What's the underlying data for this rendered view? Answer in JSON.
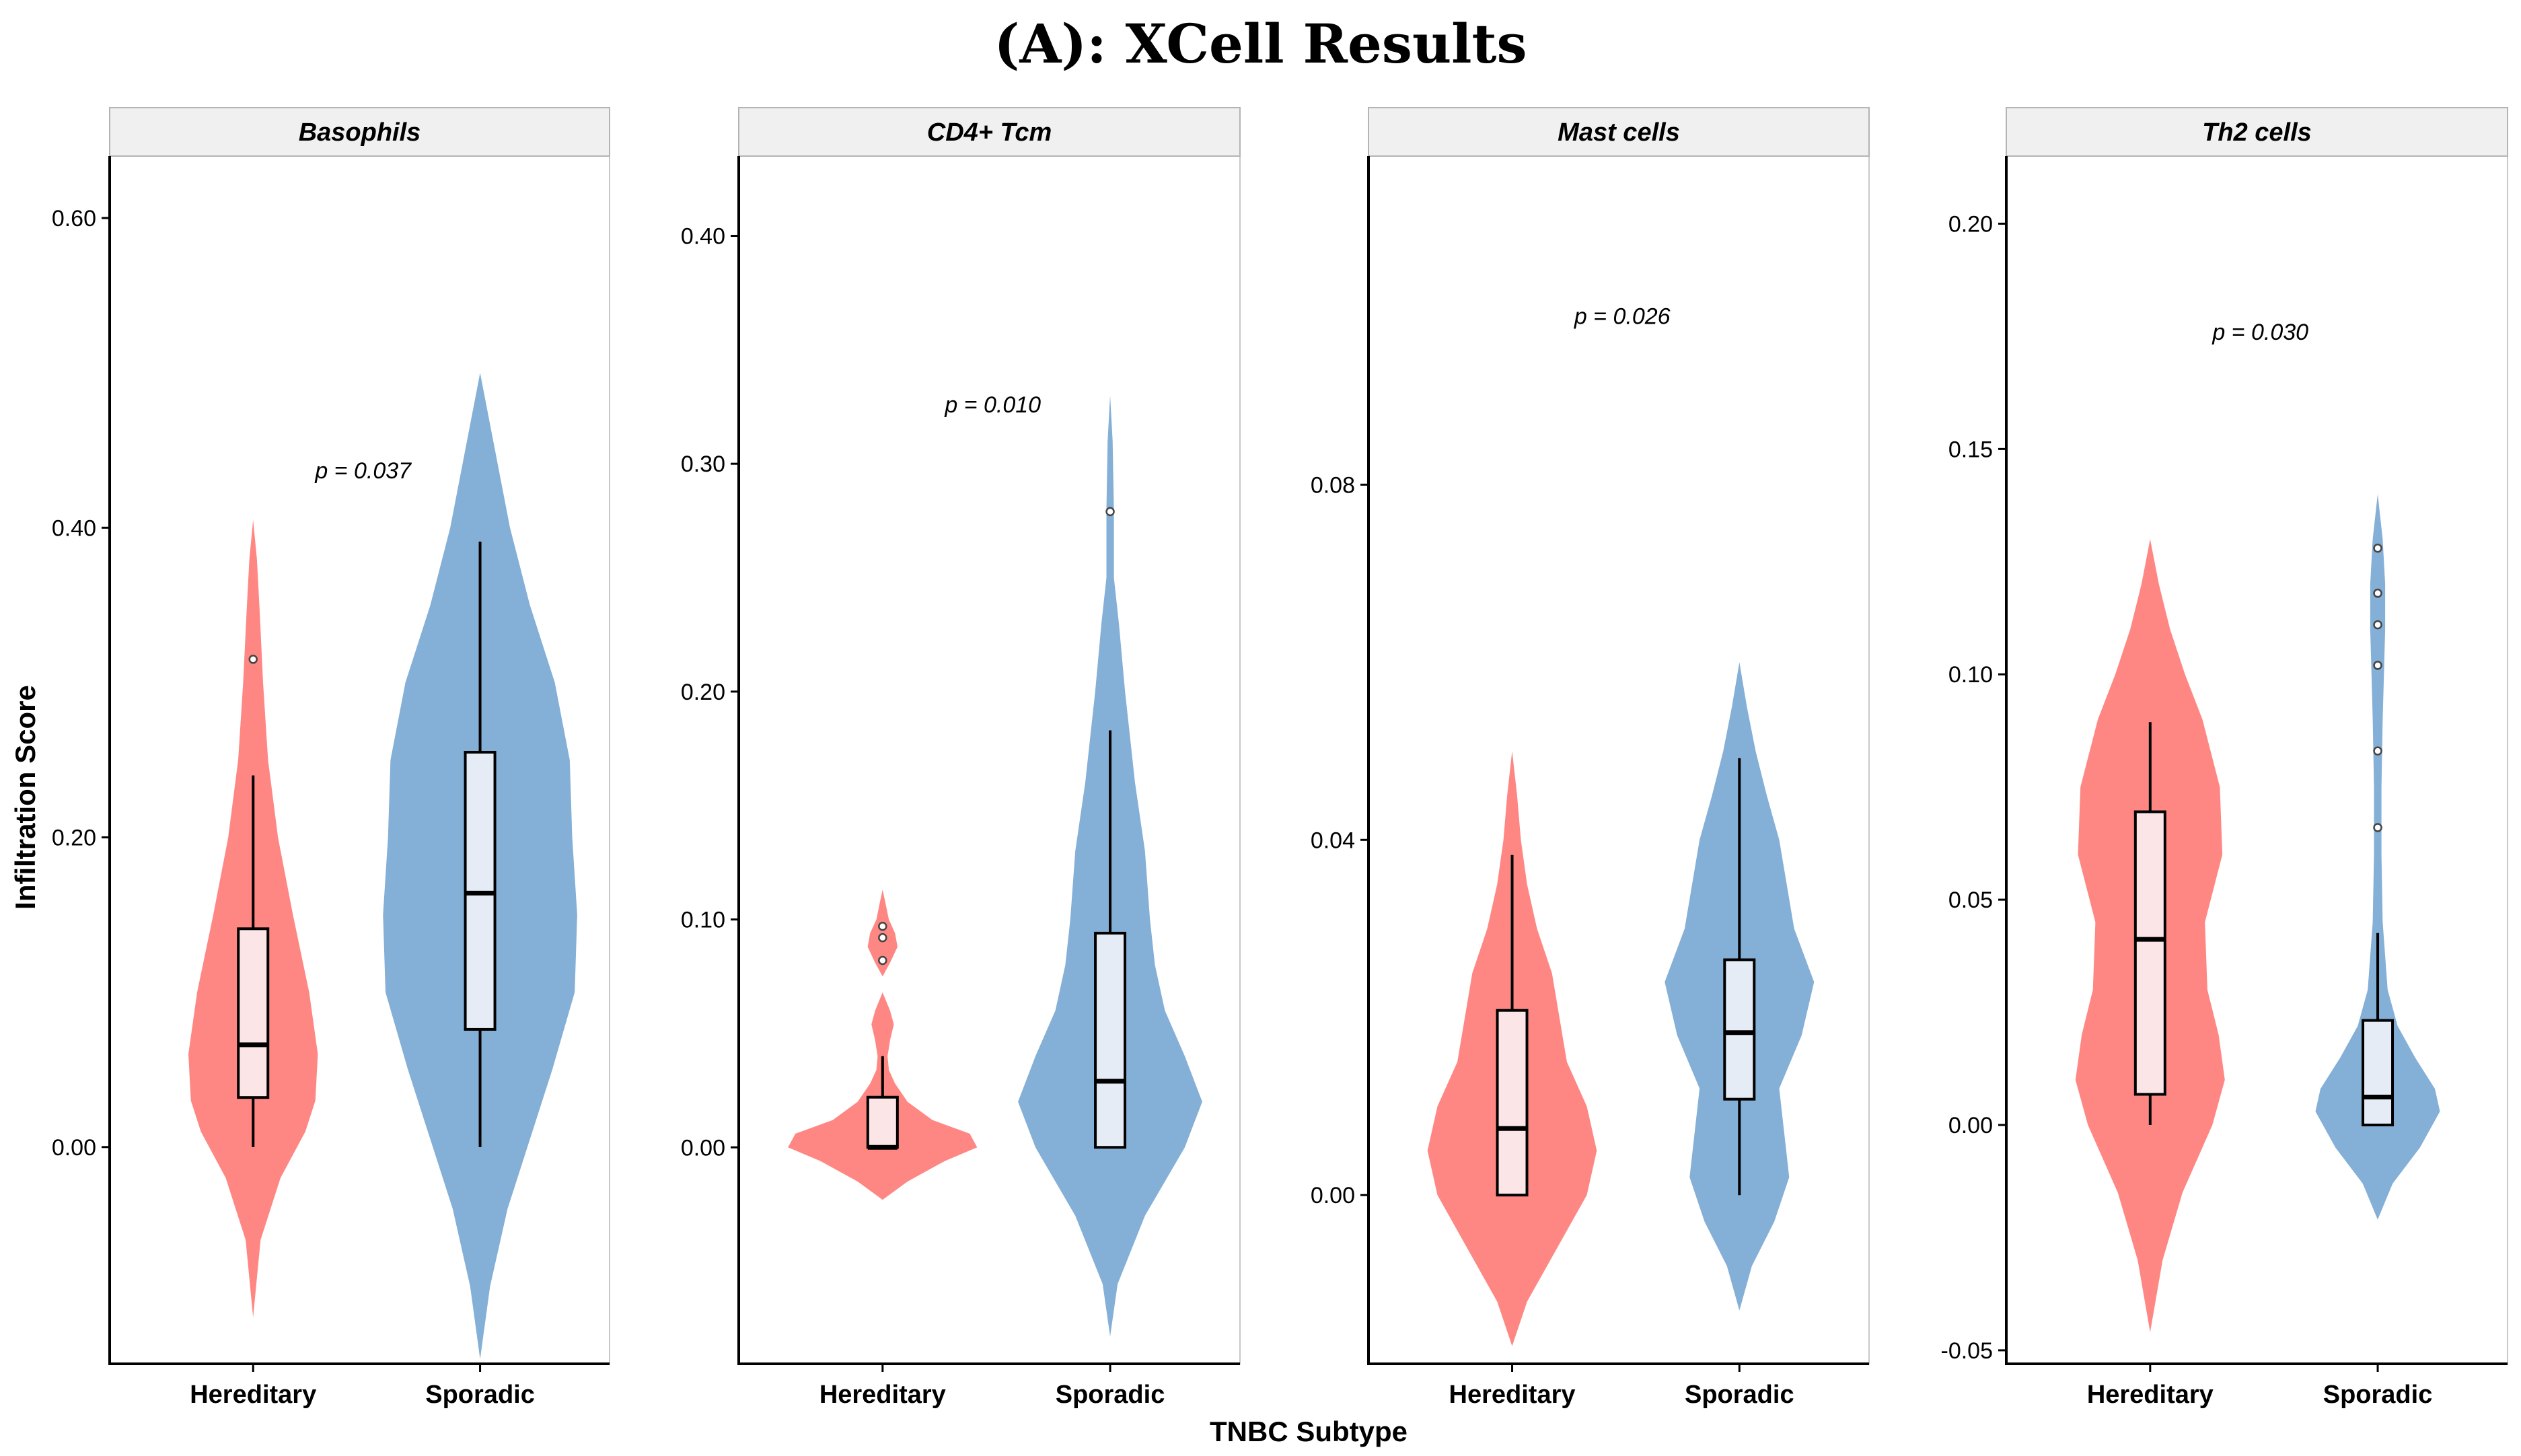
{
  "title": "(A): XCell Results",
  "chart_data": {
    "type": "violin",
    "xlabel": "TNBC Subtype",
    "ylabel": "Infiltration Score",
    "categories": [
      "Hereditary",
      "Sporadic"
    ],
    "colors": {
      "Hereditary": "#FF8783",
      "Sporadic": "#84AFD6"
    },
    "box_fill": {
      "Hereditary": "#FBE5E6",
      "Sporadic": "#E5ECF6"
    },
    "panels": [
      {
        "name": "Basophils",
        "ylim": [
          -0.14,
          0.64
        ],
        "yticks": [
          0.0,
          0.2,
          0.4,
          0.6
        ],
        "tick_labels": [
          "0.00",
          "0.20",
          "0.40",
          "0.60"
        ],
        "p_label": "p = 0.037",
        "p_y": 0.437,
        "groups": [
          {
            "name": "Hereditary",
            "violin_min": -0.11,
            "violin_max": 0.405,
            "profile": [
              [
                -0.11,
                0.0
              ],
              [
                -0.06,
                0.06
              ],
              [
                -0.02,
                0.22
              ],
              [
                0.01,
                0.42
              ],
              [
                0.03,
                0.5
              ],
              [
                0.06,
                0.52
              ],
              [
                0.1,
                0.45
              ],
              [
                0.15,
                0.32
              ],
              [
                0.2,
                0.2
              ],
              [
                0.25,
                0.12
              ],
              [
                0.3,
                0.08
              ],
              [
                0.35,
                0.05
              ],
              [
                0.38,
                0.03
              ],
              [
                0.405,
                0.0
              ]
            ],
            "box": {
              "q1": 0.032,
              "median": 0.066,
              "q3": 0.141,
              "wmin": 0.0,
              "wmax": 0.24
            },
            "outliers": [
              0.315
            ]
          },
          {
            "name": "Sporadic",
            "violin_min": -0.137,
            "violin_max": 0.5,
            "profile": [
              [
                -0.137,
                0.0
              ],
              [
                -0.09,
                0.08
              ],
              [
                -0.04,
                0.22
              ],
              [
                0.0,
                0.38
              ],
              [
                0.05,
                0.58
              ],
              [
                0.1,
                0.76
              ],
              [
                0.15,
                0.78
              ],
              [
                0.2,
                0.74
              ],
              [
                0.25,
                0.72
              ],
              [
                0.3,
                0.6
              ],
              [
                0.35,
                0.4
              ],
              [
                0.4,
                0.24
              ],
              [
                0.45,
                0.12
              ],
              [
                0.5,
                0.0
              ]
            ],
            "box": {
              "q1": 0.076,
              "median": 0.164,
              "q3": 0.255,
              "wmin": 0.0,
              "wmax": 0.391
            },
            "outliers": []
          }
        ]
      },
      {
        "name": "CD4+ Tcm",
        "ylim": [
          -0.095,
          0.435
        ],
        "yticks": [
          0.0,
          0.1,
          0.2,
          0.3,
          0.4
        ],
        "tick_labels": [
          "0.00",
          "0.10",
          "0.20",
          "0.30",
          "0.40"
        ],
        "p_label": "p = 0.010",
        "p_y": 0.326,
        "groups": [
          {
            "name": "Hereditary",
            "violin_min": -0.023,
            "violin_max": 0.113,
            "profile": [
              [
                -0.023,
                0.0
              ],
              [
                -0.015,
                0.2
              ],
              [
                -0.006,
                0.5
              ],
              [
                0.0,
                0.76
              ],
              [
                0.006,
                0.7
              ],
              [
                0.012,
                0.4
              ],
              [
                0.02,
                0.2
              ],
              [
                0.028,
                0.1
              ],
              [
                0.034,
                0.05
              ],
              [
                0.04,
                0.04
              ],
              [
                0.047,
                0.06
              ],
              [
                0.054,
                0.09
              ],
              [
                0.06,
                0.06
              ],
              [
                0.068,
                0.0
              ],
              [
                0.075,
                0.0
              ],
              [
                0.081,
                0.06
              ],
              [
                0.088,
                0.12
              ],
              [
                0.094,
                0.1
              ],
              [
                0.1,
                0.05
              ],
              [
                0.108,
                0.02
              ],
              [
                0.113,
                0.0
              ]
            ],
            "box": {
              "q1": 0.0,
              "median": 0.0,
              "q3": 0.022,
              "wmin": 0.0,
              "wmax": 0.04
            },
            "outliers": [
              0.082,
              0.092,
              0.097
            ]
          },
          {
            "name": "Sporadic",
            "violin_min": -0.083,
            "violin_max": 0.33,
            "profile": [
              [
                -0.083,
                0.0
              ],
              [
                -0.06,
                0.06
              ],
              [
                -0.03,
                0.28
              ],
              [
                0.0,
                0.6
              ],
              [
                0.02,
                0.74
              ],
              [
                0.04,
                0.6
              ],
              [
                0.06,
                0.44
              ],
              [
                0.08,
                0.36
              ],
              [
                0.1,
                0.32
              ],
              [
                0.13,
                0.28
              ],
              [
                0.16,
                0.2
              ],
              [
                0.2,
                0.12
              ],
              [
                0.23,
                0.07
              ],
              [
                0.25,
                0.03
              ],
              [
                0.28,
                0.03
              ],
              [
                0.31,
                0.02
              ],
              [
                0.33,
                0.0
              ]
            ],
            "box": {
              "q1": 0.0,
              "median": 0.029,
              "q3": 0.094,
              "wmin": 0.0,
              "wmax": 0.183
            },
            "outliers": [
              0.279
            ]
          }
        ]
      },
      {
        "name": "Mast cells",
        "ylim": [
          -0.019,
          0.117
        ],
        "yticks": [
          0.0,
          0.04,
          0.08
        ],
        "tick_labels": [
          "0.00",
          "0.04",
          "0.08"
        ],
        "p_label": "p = 0.026",
        "p_y": 0.099,
        "groups": [
          {
            "name": "Hereditary",
            "violin_min": -0.017,
            "violin_max": 0.05,
            "profile": [
              [
                -0.017,
                0.0
              ],
              [
                -0.012,
                0.12
              ],
              [
                -0.006,
                0.36
              ],
              [
                0.0,
                0.6
              ],
              [
                0.005,
                0.68
              ],
              [
                0.01,
                0.6
              ],
              [
                0.015,
                0.44
              ],
              [
                0.02,
                0.38
              ],
              [
                0.025,
                0.32
              ],
              [
                0.03,
                0.2
              ],
              [
                0.035,
                0.12
              ],
              [
                0.04,
                0.07
              ],
              [
                0.045,
                0.04
              ],
              [
                0.05,
                0.0
              ]
            ],
            "box": {
              "q1": 0.0,
              "median": 0.0075,
              "q3": 0.0208,
              "wmin": 0.0,
              "wmax": 0.0383
            },
            "outliers": []
          },
          {
            "name": "Sporadic",
            "violin_min": -0.013,
            "violin_max": 0.06,
            "profile": [
              [
                -0.013,
                0.0
              ],
              [
                -0.008,
                0.1
              ],
              [
                -0.003,
                0.28
              ],
              [
                0.002,
                0.4
              ],
              [
                0.007,
                0.36
              ],
              [
                0.012,
                0.32
              ],
              [
                0.018,
                0.5
              ],
              [
                0.024,
                0.6
              ],
              [
                0.03,
                0.44
              ],
              [
                0.035,
                0.38
              ],
              [
                0.04,
                0.32
              ],
              [
                0.045,
                0.22
              ],
              [
                0.05,
                0.13
              ],
              [
                0.055,
                0.06
              ],
              [
                0.06,
                0.0
              ]
            ],
            "box": {
              "q1": 0.0108,
              "median": 0.0183,
              "q3": 0.0265,
              "wmin": 0.0,
              "wmax": 0.0492
            },
            "outliers": []
          }
        ]
      },
      {
        "name": "Th2 cells",
        "ylim": [
          -0.053,
          0.215
        ],
        "yticks": [
          -0.05,
          0.0,
          0.05,
          0.1,
          0.15,
          0.2
        ],
        "tick_labels": [
          "-0.05",
          "0.00",
          "0.05",
          "0.10",
          "0.15",
          "0.20"
        ],
        "p_label": "p = 0.030",
        "p_y": 0.176,
        "groups": [
          {
            "name": "Hereditary",
            "violin_min": -0.046,
            "violin_max": 0.13,
            "profile": [
              [
                -0.046,
                0.0
              ],
              [
                -0.03,
                0.1
              ],
              [
                -0.015,
                0.26
              ],
              [
                0.0,
                0.5
              ],
              [
                0.01,
                0.6
              ],
              [
                0.02,
                0.55
              ],
              [
                0.03,
                0.46
              ],
              [
                0.045,
                0.44
              ],
              [
                0.06,
                0.58
              ],
              [
                0.075,
                0.56
              ],
              [
                0.09,
                0.42
              ],
              [
                0.1,
                0.28
              ],
              [
                0.11,
                0.16
              ],
              [
                0.12,
                0.07
              ],
              [
                0.13,
                0.0
              ]
            ],
            "box": {
              "q1": 0.0068,
              "median": 0.0412,
              "q3": 0.0695,
              "wmin": 0.0,
              "wmax": 0.0894
            },
            "outliers": []
          },
          {
            "name": "Sporadic",
            "violin_min": -0.021,
            "violin_max": 0.14,
            "profile": [
              [
                -0.021,
                0.0
              ],
              [
                -0.013,
                0.12
              ],
              [
                -0.005,
                0.34
              ],
              [
                0.003,
                0.5
              ],
              [
                0.008,
                0.46
              ],
              [
                0.015,
                0.3
              ],
              [
                0.022,
                0.16
              ],
              [
                0.03,
                0.08
              ],
              [
                0.045,
                0.04
              ],
              [
                0.06,
                0.03
              ],
              [
                0.075,
                0.03
              ],
              [
                0.09,
                0.04
              ],
              [
                0.1,
                0.05
              ],
              [
                0.11,
                0.06
              ],
              [
                0.12,
                0.06
              ],
              [
                0.13,
                0.04
              ],
              [
                0.14,
                0.0
              ]
            ],
            "box": {
              "q1": 0.0,
              "median": 0.0062,
              "q3": 0.0232,
              "wmin": 0.0,
              "wmax": 0.0426
            },
            "outliers": [
              0.066,
              0.083,
              0.102,
              0.111,
              0.118,
              0.128
            ]
          }
        ]
      }
    ]
  }
}
